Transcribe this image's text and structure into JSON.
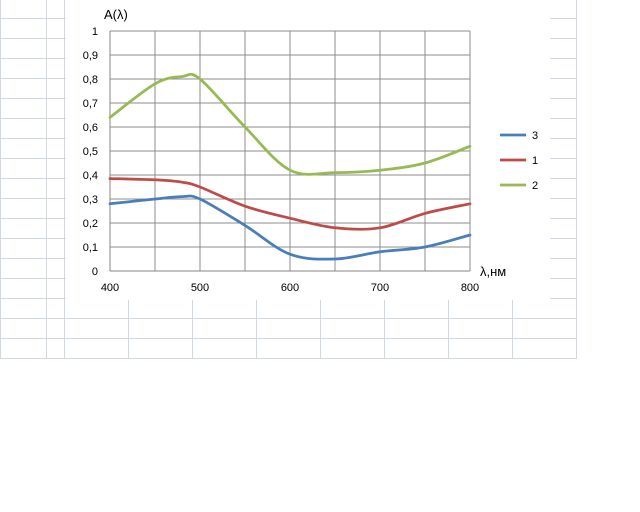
{
  "chart_data": {
    "type": "line",
    "title": "",
    "ylabel": "A(λ)",
    "xlabel": "λ,нм",
    "xlim": [
      400,
      800
    ],
    "ylim": [
      0,
      1
    ],
    "x_ticks": [
      "400",
      "500",
      "600",
      "700",
      "800"
    ],
    "y_ticks": [
      "0",
      "0,1",
      "0,2",
      "0,3",
      "0,4",
      "0,5",
      "0,6",
      "0,7",
      "0,8",
      "0,9",
      "1"
    ],
    "grid": true,
    "legend_position": "right",
    "series": [
      {
        "name": "3",
        "color": "#4a7ebb",
        "x": [
          400,
          450,
          480,
          500,
          550,
          600,
          650,
          700,
          750,
          800
        ],
        "y": [
          0.28,
          0.3,
          0.31,
          0.3,
          0.19,
          0.07,
          0.05,
          0.08,
          0.1,
          0.15
        ]
      },
      {
        "name": "1",
        "color": "#be4b48",
        "x": [
          400,
          450,
          480,
          500,
          550,
          600,
          650,
          700,
          750,
          800
        ],
        "y": [
          0.385,
          0.38,
          0.37,
          0.35,
          0.27,
          0.22,
          0.18,
          0.18,
          0.24,
          0.28
        ]
      },
      {
        "name": "2",
        "color": "#98b954",
        "x": [
          400,
          450,
          480,
          500,
          550,
          600,
          650,
          700,
          750,
          800
        ],
        "y": [
          0.64,
          0.78,
          0.81,
          0.8,
          0.6,
          0.42,
          0.41,
          0.42,
          0.45,
          0.52
        ]
      }
    ]
  }
}
